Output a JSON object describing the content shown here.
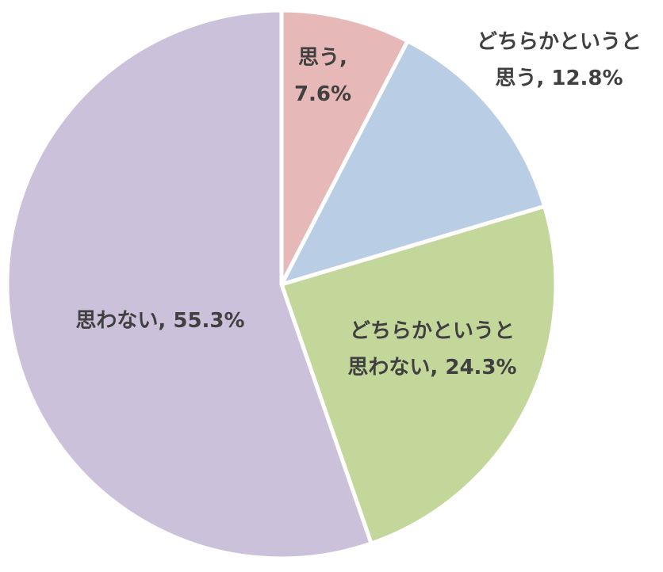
{
  "chart_data": {
    "type": "pie",
    "start_angle_deg": 0,
    "direction": "clockwise",
    "slices": [
      {
        "label_lines": [
          "思う,",
          "7.6%"
        ],
        "category": "思う",
        "value": 7.6,
        "color": "#e6b9b8"
      },
      {
        "label_lines": [
          "どちらかというと",
          "思う, 12.8%"
        ],
        "category": "どちらかというと思う",
        "value": 12.8,
        "color": "#b9cde5"
      },
      {
        "label_lines": [
          "どちらかというと",
          "思わない, 24.3%"
        ],
        "category": "どちらかというと思わない",
        "value": 24.3,
        "color": "#c4d79b"
      },
      {
        "label_lines": [
          "思わない, 55.3%"
        ],
        "category": "思わない",
        "value": 55.3,
        "color": "#ccc1da"
      }
    ]
  }
}
